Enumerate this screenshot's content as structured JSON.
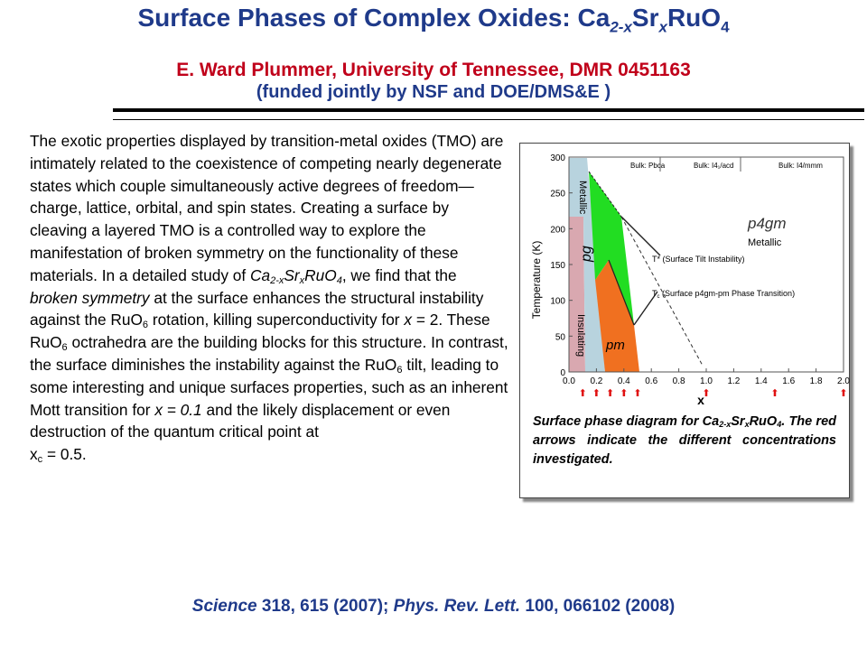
{
  "title": {
    "main": "Surface Phases of Complex Oxides:  Ca",
    "sub1": "2-x",
    "mid": "Sr",
    "sub2": "x",
    "end": "RuO",
    "sub3": "4"
  },
  "author": "E. Ward Plummer, University of Tennessee, DMR 0451163",
  "funding": "(funded jointly by NSF and DOE/DMS&E )",
  "body": {
    "p1": "The exotic properties displayed by transition-metal oxides (TMO) are intimately related to the coexistence of competing nearly degenerate states which couple simultaneously active degrees of freedom—charge, lattice, orbital, and spin states. Creating a surface by cleaving a layered TMO is a controlled way to explore the manifestation of broken symmetry on the functionality of these materials.  In a detailed study of ",
    "ca": "Ca",
    "ca_sub": "2-x",
    "sr": "Sr",
    "sr_sub": "x",
    "ru": "RuO",
    "ru_sub": "4",
    "p2": ", we find that the ",
    "broken": "broken symmetry",
    "p3": " at the surface enhances the structural instability against the RuO",
    "sub6a": "6",
    "p4": " rotation, killing superconductivity for ",
    "x2": "x",
    "p5": " = 2.  These RuO",
    "sub6b": "6",
    "p6": " octrahedra are the building blocks for this structure.  In contrast, the surface diminishes the instability against the RuO",
    "sub6c": "6",
    "p7": " tilt, leading to some interesting and unique surfaces properties, such as an inherent Mott transition for ",
    "x01": "x = 0.1",
    "p8": " and the likely displacement or even destruction of the quantum critical point at",
    "xc": "x",
    "xc_sub": "c",
    "p9": " = 0.5."
  },
  "figure": {
    "ylabel": "Temperature (K)",
    "xlabel": "x",
    "yticks": [
      "0",
      "50",
      "100",
      "150",
      "200",
      "250",
      "300"
    ],
    "xticks": [
      "0.0",
      "0.2",
      "0.4",
      "0.6",
      "0.8",
      "1.0",
      "1.2",
      "1.4",
      "1.6",
      "1.8",
      "2.0"
    ],
    "bulk_pbca": "Bulk: Pbca",
    "bulk_i41acd": "Bulk: I4₁/acd",
    "bulk_i4mmm": "Bulk: I4/mmm",
    "metallic_left": "Metallic",
    "insulating": "Insulating",
    "pg": "pg",
    "pm": "pm",
    "p4gm": "p4gm",
    "metallic_right": "Metallic",
    "tstar": "T* (Surface Tilt Instability)",
    "tc": "T",
    "tc_sub": "c",
    "tc_rest": " (Surface p4gm-pm Phase Transition)",
    "arrow_color": "#e01010",
    "arrows_x": [
      0.1,
      0.2,
      0.3,
      0.4,
      0.5,
      1.0,
      1.5,
      2.0
    ]
  },
  "caption": {
    "a": "Surface phase diagram for Ca",
    "s1": "2-x",
    "b": "Sr",
    "s2": "x",
    "c": "RuO",
    "s3": "4",
    "d": ".   The red arrows indicate the different concentrations investigated."
  },
  "reference": {
    "j1": "Science",
    "r1": " 318, 615 (2007); ",
    "j2": "Phys. Rev. Lett.",
    "r2": " 100, 066102 (2008)"
  }
}
